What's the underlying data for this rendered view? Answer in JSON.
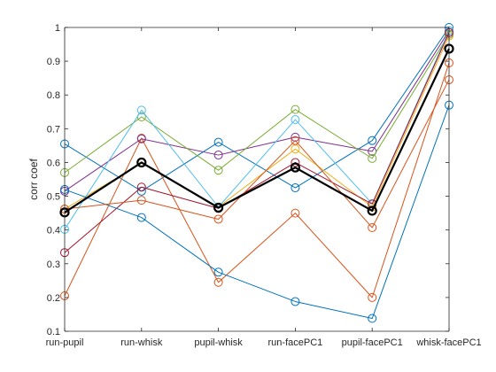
{
  "chart_data": {
    "type": "line",
    "title": "",
    "xlabel": "",
    "ylabel": "corr coef",
    "categories": [
      "run-pupil",
      "run-whisk",
      "pupil-whisk",
      "run-facePC1",
      "pupil-facePC1",
      "whisk-facePC1"
    ],
    "ylim": [
      0.1,
      1
    ],
    "yticks": [
      "0.1",
      "0.2",
      "0.3",
      "0.4",
      "0.5",
      "0.6",
      "0.7",
      "0.8",
      "0.9",
      "1"
    ],
    "grid": false,
    "legend": "none",
    "marker": "open-circle",
    "series": [
      {
        "color": "#0072BD",
        "values": [
          0.655,
          0.515,
          0.66,
          0.525,
          0.665,
          1.0
        ]
      },
      {
        "color": "#D95319",
        "values": [
          0.205,
          0.672,
          0.245,
          0.45,
          0.2,
          0.895
        ]
      },
      {
        "color": "#EDB120",
        "values": [
          0.462,
          0.598,
          0.468,
          0.64,
          0.468,
          0.975
        ]
      },
      {
        "color": "#7E2F8E",
        "values": [
          0.515,
          0.67,
          0.622,
          0.675,
          0.633,
          0.99
        ]
      },
      {
        "color": "#77AC30",
        "values": [
          0.57,
          0.735,
          0.577,
          0.757,
          0.612,
          0.98
        ]
      },
      {
        "color": "#4DBEEE",
        "values": [
          0.402,
          0.755,
          0.468,
          0.727,
          0.478,
          0.99
        ]
      },
      {
        "color": "#A2142F",
        "values": [
          0.333,
          0.527,
          0.464,
          0.6,
          0.477,
          0.985
        ]
      },
      {
        "color": "#0072BD",
        "values": [
          0.52,
          0.437,
          0.275,
          0.188,
          0.138,
          0.77
        ]
      },
      {
        "color": "#D95319",
        "values": [
          0.462,
          0.488,
          0.432,
          0.665,
          0.407,
          0.845
        ]
      },
      {
        "color": "#000000",
        "bold": true,
        "values": [
          0.452,
          0.6,
          0.466,
          0.585,
          0.457,
          0.937
        ]
      }
    ]
  }
}
